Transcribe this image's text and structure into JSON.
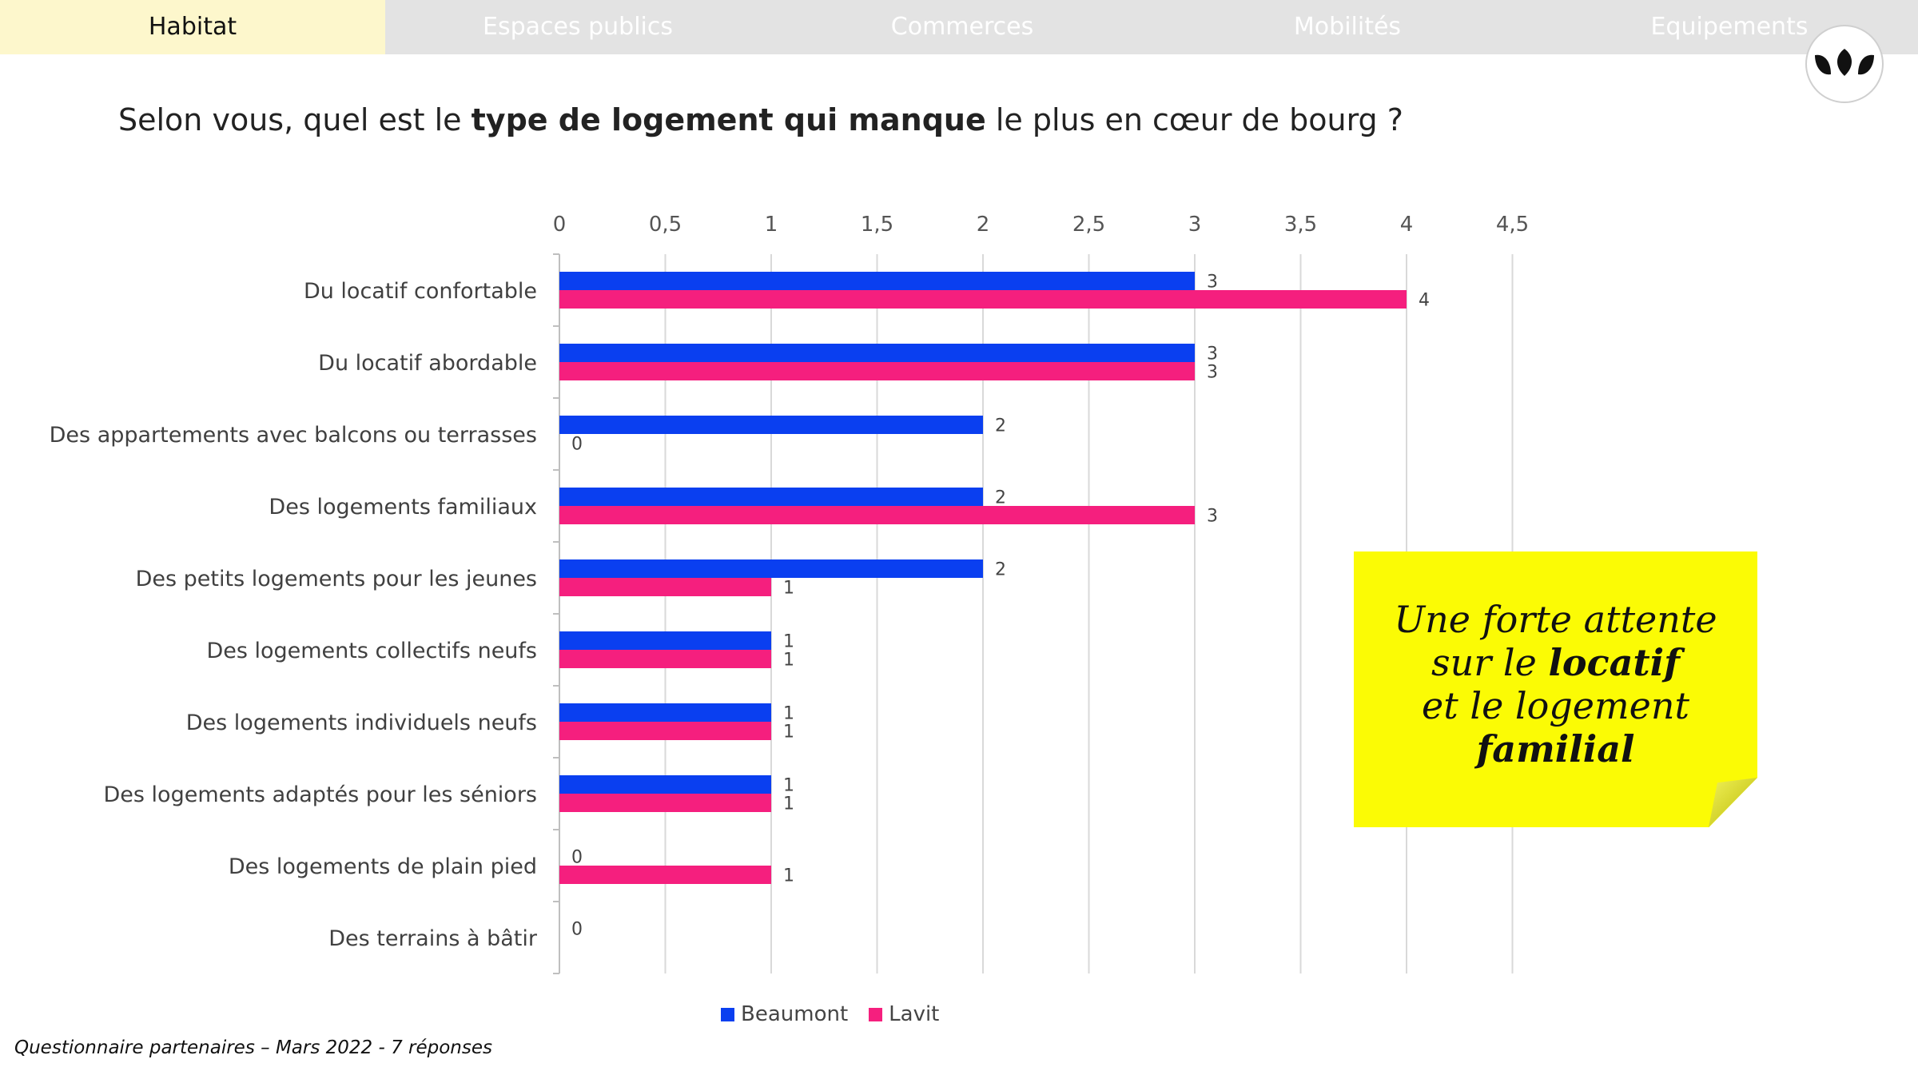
{
  "tabs": [
    {
      "label": "Habitat",
      "active": true
    },
    {
      "label": "Espaces publics",
      "active": false
    },
    {
      "label": "Commerces",
      "active": false
    },
    {
      "label": "Mobilités",
      "active": false
    },
    {
      "label": "Equipements",
      "active": false
    }
  ],
  "question": {
    "before": "Selon vous, quel est le ",
    "bold": "type de logement qui manque",
    "after": " le plus en cœur de bourg ?"
  },
  "note": {
    "line1": "Une forte attente",
    "line2_pre": "sur le ",
    "line2_bold": "locatif",
    "line3": "et le logement",
    "line4_bold": "familial"
  },
  "footer": "Questionnaire partenaires – Mars 2022 - 7 réponses",
  "colors": {
    "beaumont": "#0a3ff0",
    "lavit": "#f51f7e",
    "note": "#fbfb05",
    "tab_active": "#fdf7cc",
    "tab_bar": "#e3e3e3"
  },
  "icons": {
    "logo": "three-leaves-logo-icon"
  },
  "chart_data": {
    "type": "bar",
    "orientation": "horizontal",
    "categories": [
      "Du locatif confortable",
      "Du locatif abordable",
      "Des appartements avec balcons ou terrasses",
      "Des logements familiaux",
      "Des petits logements pour les jeunes",
      "Des logements collectifs neufs",
      "Des logements individuels neufs",
      "Des logements adaptés pour les séniors",
      "Des logements de plain pied",
      "Des terrains à bâtir"
    ],
    "series": [
      {
        "name": "Beaumont",
        "color": "#0a3ff0",
        "values": [
          3,
          3,
          2,
          2,
          2,
          1,
          1,
          1,
          0,
          0
        ]
      },
      {
        "name": "Lavit",
        "color": "#f51f7e",
        "values": [
          4,
          3,
          0,
          3,
          1,
          1,
          1,
          1,
          1,
          null
        ]
      }
    ],
    "xlim": [
      0,
      4.5
    ],
    "ticks": [
      "0",
      "0,5",
      "1",
      "1,5",
      "2",
      "2,5",
      "3",
      "3,5",
      "4",
      "4,5"
    ],
    "axis_position": "top",
    "grid": true,
    "legend": "bottom",
    "data_labels": true
  }
}
